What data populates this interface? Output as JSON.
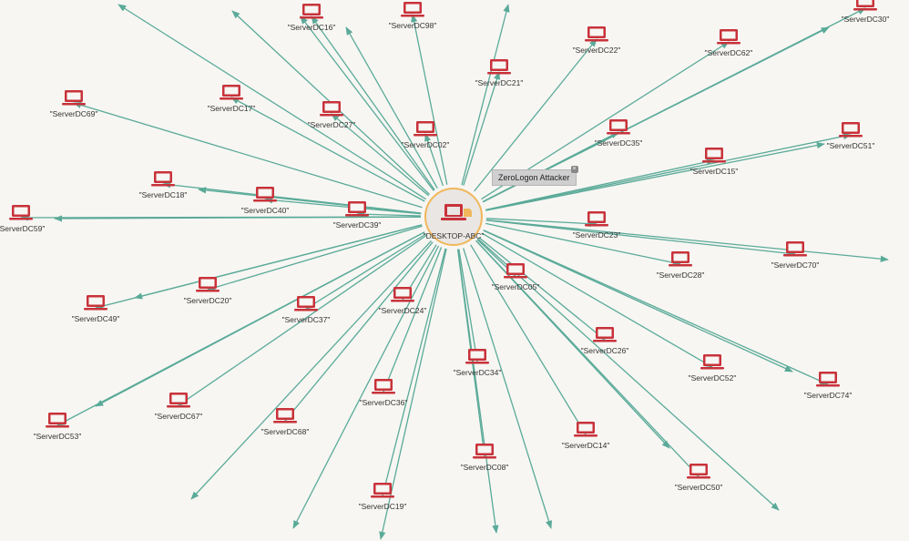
{
  "center": {
    "label": "\"DESKTOP-ABC\"",
    "icon": "laptop-icon"
  },
  "tooltip": {
    "text": "ZeroLogon Attacker"
  },
  "colors": {
    "edge": "#5aaa98",
    "node": "#c8323a",
    "center_ring": "#f1b75a",
    "center_fill": "#e9e6e3",
    "tooltip_bg": "#cfcfcf"
  },
  "nodes": [
    "\"ServerDC16\"",
    "\"ServerDC98\"",
    "\"ServerDC22\"",
    "\"ServerDC62\"",
    "\"ServerDC30\"",
    "\"ServerDC21\"",
    "\"ServerDC69\"",
    "\"ServerDC17\"",
    "\"ServerDC27\"",
    "\"ServerDC02\"",
    "\"ServerDC35\"",
    "\"ServerDC51\"",
    "\"ServerDC15\"",
    "\"ServerDC18\"",
    "\"ServerDC40\"",
    "\"ServerDC39\"",
    "\"ServerDC59\"",
    "\"ServerDC23\"",
    "\"ServerDC28\"",
    "\"ServerDC70\"",
    "\"ServerDC05\"",
    "\"ServerDC20\"",
    "\"ServerDC49\"",
    "\"ServerDC37\"",
    "\"ServerDC24\"",
    "\"ServerDC26\"",
    "\"ServerDC34\"",
    "\"ServerDC52\"",
    "\"ServerDC74\"",
    "\"ServerDC67\"",
    "\"ServerDC36\"",
    "\"ServerDC53\"",
    "\"ServerDC68\"",
    "\"ServerDC14\"",
    "\"ServerDC08\"",
    "\"ServerDC50\"",
    "\"ServerDC19\""
  ]
}
